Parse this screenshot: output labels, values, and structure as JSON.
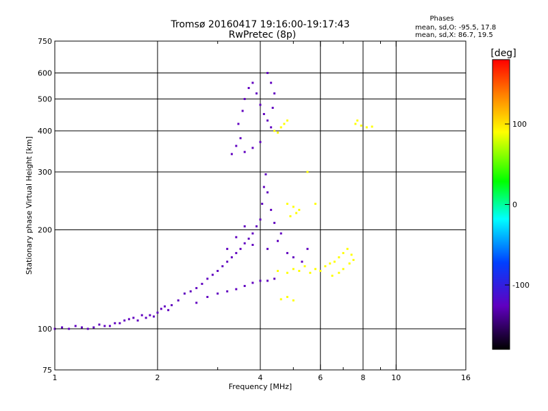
{
  "chart_data": {
    "type": "scatter",
    "title": "Tromsø 20160417  19:16:00-19:17:43",
    "subtitle": "RwPretec (8p)",
    "xlabel": "Frequency [MHz]",
    "ylabel": "Stationary phase Virtual Height [km]",
    "xscale": "log",
    "yscale": "log",
    "xlim": [
      1,
      16
    ],
    "ylim": [
      75,
      750
    ],
    "grid": true,
    "x_ticks": [
      1,
      2,
      4,
      6,
      8,
      10,
      16
    ],
    "x_tick_labels": [
      "1",
      "2",
      "4",
      "6",
      "8",
      "10",
      "16"
    ],
    "x_minor_ticks": [
      3,
      5,
      7,
      9
    ],
    "x_grid": [
      2,
      4,
      6,
      8,
      10
    ],
    "y_ticks": [
      75,
      100,
      200,
      300,
      400,
      500,
      600,
      750
    ],
    "y_tick_labels": [
      "75",
      "100",
      "200",
      "300",
      "400",
      "500",
      "600",
      "750"
    ],
    "y_grid": [
      100,
      200,
      300,
      400,
      500,
      600
    ],
    "phase_legend": {
      "heading": "Phases",
      "line1": "mean, sd,O:  -95.5, 17.8",
      "line2": "mean, sd,X:   86.7, 19.5"
    },
    "colorbar": {
      "unit": "[deg]",
      "range": [
        -180,
        180
      ],
      "ticks": [
        100,
        0,
        -100
      ],
      "tick_labels": [
        "100",
        "0",
        "-100"
      ]
    },
    "series": [
      {
        "mode": "O",
        "phase_deg": -100,
        "points": [
          [
            1.0,
            100
          ],
          [
            1.05,
            101
          ],
          [
            1.1,
            100
          ],
          [
            1.15,
            102
          ],
          [
            1.2,
            101
          ],
          [
            1.25,
            100
          ],
          [
            1.3,
            101
          ],
          [
            1.35,
            103
          ],
          [
            1.4,
            102
          ],
          [
            1.45,
            102
          ],
          [
            1.5,
            104
          ],
          [
            1.55,
            104
          ],
          [
            1.6,
            106
          ],
          [
            1.65,
            107
          ],
          [
            1.7,
            108
          ],
          [
            1.75,
            106
          ],
          [
            1.8,
            110
          ],
          [
            1.85,
            108
          ],
          [
            1.9,
            110
          ],
          [
            1.95,
            109
          ],
          [
            2.0,
            112
          ],
          [
            2.05,
            115
          ],
          [
            2.1,
            117
          ],
          [
            2.15,
            114
          ],
          [
            2.2,
            118
          ],
          [
            2.3,
            122
          ],
          [
            2.4,
            128
          ],
          [
            2.5,
            130
          ],
          [
            2.6,
            133
          ],
          [
            2.7,
            137
          ],
          [
            2.8,
            142
          ],
          [
            2.9,
            146
          ],
          [
            3.0,
            150
          ],
          [
            3.1,
            155
          ],
          [
            3.2,
            160
          ],
          [
            3.3,
            165
          ],
          [
            3.4,
            170
          ],
          [
            3.5,
            175
          ],
          [
            3.6,
            182
          ],
          [
            3.7,
            188
          ],
          [
            3.8,
            195
          ],
          [
            3.9,
            205
          ],
          [
            4.0,
            215
          ],
          [
            4.05,
            240
          ],
          [
            4.1,
            270
          ],
          [
            4.15,
            295
          ],
          [
            4.2,
            260
          ],
          [
            4.3,
            230
          ],
          [
            4.4,
            210
          ],
          [
            4.6,
            195
          ],
          [
            2.6,
            120
          ],
          [
            2.8,
            125
          ],
          [
            3.0,
            128
          ],
          [
            3.2,
            130
          ],
          [
            3.4,
            132
          ],
          [
            3.6,
            135
          ],
          [
            3.8,
            138
          ],
          [
            4.0,
            140
          ],
          [
            4.2,
            140
          ],
          [
            4.4,
            142
          ],
          [
            3.2,
            175
          ],
          [
            3.4,
            190
          ],
          [
            3.6,
            205
          ],
          [
            3.8,
            180
          ],
          [
            4.2,
            175
          ],
          [
            4.5,
            185
          ],
          [
            4.8,
            170
          ],
          [
            5.0,
            165
          ],
          [
            5.3,
            160
          ],
          [
            5.5,
            175
          ],
          [
            3.3,
            340
          ],
          [
            3.4,
            360
          ],
          [
            3.5,
            380
          ],
          [
            3.45,
            420
          ],
          [
            3.55,
            460
          ],
          [
            3.6,
            500
          ],
          [
            3.7,
            540
          ],
          [
            3.8,
            560
          ],
          [
            3.9,
            520
          ],
          [
            4.0,
            480
          ],
          [
            4.1,
            450
          ],
          [
            4.2,
            430
          ],
          [
            4.3,
            410
          ],
          [
            4.35,
            470
          ],
          [
            4.4,
            520
          ],
          [
            4.3,
            560
          ],
          [
            4.2,
            600
          ],
          [
            3.6,
            345
          ],
          [
            3.8,
            355
          ],
          [
            4.0,
            370
          ]
        ]
      },
      {
        "mode": "X",
        "phase_deg": 90,
        "points": [
          [
            4.5,
            150
          ],
          [
            4.8,
            148
          ],
          [
            5.0,
            152
          ],
          [
            5.2,
            150
          ],
          [
            5.4,
            155
          ],
          [
            5.6,
            148
          ],
          [
            5.8,
            152
          ],
          [
            6.0,
            150
          ],
          [
            6.2,
            155
          ],
          [
            6.4,
            158
          ],
          [
            6.6,
            160
          ],
          [
            6.8,
            165
          ],
          [
            7.0,
            170
          ],
          [
            7.2,
            175
          ],
          [
            7.4,
            168
          ],
          [
            6.5,
            145
          ],
          [
            6.8,
            148
          ],
          [
            7.0,
            152
          ],
          [
            7.3,
            158
          ],
          [
            7.5,
            162
          ],
          [
            5.0,
            235
          ],
          [
            5.2,
            230
          ],
          [
            4.8,
            240
          ],
          [
            5.1,
            225
          ],
          [
            4.9,
            220
          ],
          [
            4.7,
            420
          ],
          [
            4.6,
            410
          ],
          [
            4.5,
            395
          ],
          [
            4.8,
            430
          ],
          [
            4.4,
            400
          ],
          [
            7.6,
            420
          ],
          [
            7.9,
            415
          ],
          [
            8.2,
            410
          ],
          [
            8.5,
            412
          ],
          [
            7.7,
            430
          ],
          [
            4.6,
            123
          ],
          [
            4.8,
            125
          ],
          [
            5.0,
            122
          ],
          [
            5.5,
            300
          ],
          [
            5.8,
            240
          ]
        ]
      }
    ]
  }
}
